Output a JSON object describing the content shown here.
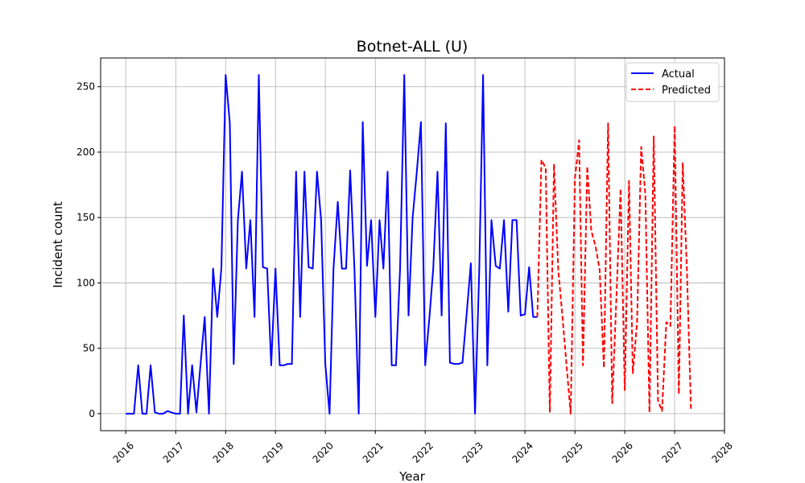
{
  "chart_data": {
    "type": "line",
    "title": "Botnet-ALL (U)",
    "xlabel": "Year",
    "ylabel": "Incident count",
    "xlim": [
      "2015-07-01",
      "2028-01-01"
    ],
    "ylim": [
      -13,
      272
    ],
    "x_ticks": [
      "2016",
      "2017",
      "2018",
      "2019",
      "2020",
      "2021",
      "2022",
      "2023",
      "2024",
      "2025",
      "2026",
      "2027",
      "2028"
    ],
    "y_ticks": [
      0,
      50,
      100,
      150,
      200,
      250
    ],
    "grid": true,
    "legend_position": "top-right",
    "colors": {
      "actual": "#0000ff",
      "predicted": "#ff0000"
    },
    "series": [
      {
        "name": "Actual",
        "style": "solid",
        "points": [
          [
            "2016-01-01",
            0
          ],
          [
            "2016-02-01",
            0
          ],
          [
            "2016-03-01",
            0
          ],
          [
            "2016-04-01",
            37
          ],
          [
            "2016-05-01",
            0
          ],
          [
            "2016-06-01",
            0
          ],
          [
            "2016-07-01",
            37
          ],
          [
            "2016-08-01",
            1
          ],
          [
            "2016-09-01",
            0
          ],
          [
            "2016-10-01",
            0
          ],
          [
            "2016-11-01",
            2
          ],
          [
            "2016-12-01",
            1
          ],
          [
            "2017-01-01",
            0
          ],
          [
            "2017-02-01",
            0
          ],
          [
            "2017-03-01",
            75
          ],
          [
            "2017-04-01",
            0
          ],
          [
            "2017-05-01",
            37
          ],
          [
            "2017-06-01",
            1
          ],
          [
            "2017-07-01",
            37
          ],
          [
            "2017-08-01",
            74
          ],
          [
            "2017-09-01",
            0
          ],
          [
            "2017-10-01",
            111
          ],
          [
            "2017-11-01",
            74
          ],
          [
            "2017-12-01",
            111
          ],
          [
            "2018-01-01",
            259
          ],
          [
            "2018-02-01",
            222
          ],
          [
            "2018-03-01",
            38
          ],
          [
            "2018-04-01",
            148
          ],
          [
            "2018-05-01",
            185
          ],
          [
            "2018-06-01",
            111
          ],
          [
            "2018-07-01",
            148
          ],
          [
            "2018-08-01",
            74
          ],
          [
            "2018-09-01",
            259
          ],
          [
            "2018-10-01",
            112
          ],
          [
            "2018-11-01",
            111
          ],
          [
            "2018-12-01",
            37
          ],
          [
            "2019-01-01",
            111
          ],
          [
            "2019-02-01",
            37
          ],
          [
            "2019-03-01",
            37
          ],
          [
            "2019-04-01",
            38
          ],
          [
            "2019-05-01",
            38
          ],
          [
            "2019-06-01",
            185
          ],
          [
            "2019-07-01",
            74
          ],
          [
            "2019-08-01",
            185
          ],
          [
            "2019-09-01",
            112
          ],
          [
            "2019-10-01",
            111
          ],
          [
            "2019-11-01",
            185
          ],
          [
            "2019-12-01",
            148
          ],
          [
            "2020-01-01",
            38
          ],
          [
            "2020-02-01",
            0
          ],
          [
            "2020-03-01",
            111
          ],
          [
            "2020-04-01",
            162
          ],
          [
            "2020-05-01",
            111
          ],
          [
            "2020-06-01",
            111
          ],
          [
            "2020-07-01",
            186
          ],
          [
            "2020-08-01",
            111
          ],
          [
            "2020-09-01",
            0
          ],
          [
            "2020-10-01",
            223
          ],
          [
            "2020-11-01",
            113
          ],
          [
            "2020-12-01",
            148
          ],
          [
            "2021-01-01",
            74
          ],
          [
            "2021-02-01",
            148
          ],
          [
            "2021-03-01",
            111
          ],
          [
            "2021-04-01",
            185
          ],
          [
            "2021-05-01",
            37
          ],
          [
            "2021-06-01",
            37
          ],
          [
            "2021-07-01",
            111
          ],
          [
            "2021-08-01",
            259
          ],
          [
            "2021-09-01",
            75
          ],
          [
            "2021-10-01",
            150
          ],
          [
            "2021-11-01",
            185
          ],
          [
            "2021-12-01",
            223
          ],
          [
            "2022-01-01",
            37
          ],
          [
            "2022-02-01",
            74
          ],
          [
            "2022-03-01",
            111
          ],
          [
            "2022-04-01",
            185
          ],
          [
            "2022-05-01",
            75
          ],
          [
            "2022-06-01",
            222
          ],
          [
            "2022-07-01",
            39
          ],
          [
            "2022-08-01",
            38
          ],
          [
            "2022-09-01",
            38
          ],
          [
            "2022-10-01",
            39
          ],
          [
            "2022-11-01",
            77
          ],
          [
            "2022-12-01",
            115
          ],
          [
            "2023-01-01",
            0
          ],
          [
            "2023-02-01",
            111
          ],
          [
            "2023-03-01",
            259
          ],
          [
            "2023-04-01",
            37
          ],
          [
            "2023-05-01",
            148
          ],
          [
            "2023-06-01",
            113
          ],
          [
            "2023-07-01",
            111
          ],
          [
            "2023-08-01",
            148
          ],
          [
            "2023-09-01",
            78
          ],
          [
            "2023-10-01",
            148
          ],
          [
            "2023-11-01",
            148
          ],
          [
            "2023-12-01",
            75
          ],
          [
            "2024-01-01",
            76
          ],
          [
            "2024-02-01",
            112
          ],
          [
            "2024-03-01",
            74
          ],
          [
            "2024-04-01",
            74
          ]
        ]
      },
      {
        "name": "Predicted",
        "style": "dashed",
        "points": [
          [
            "2024-04-01",
            74
          ],
          [
            "2024-05-01",
            194
          ],
          [
            "2024-06-01",
            188
          ],
          [
            "2024-07-01",
            1
          ],
          [
            "2024-08-01",
            191
          ],
          [
            "2024-09-01",
            110
          ],
          [
            "2024-10-01",
            75
          ],
          [
            "2024-11-01",
            37
          ],
          [
            "2024-12-01",
            0
          ],
          [
            "2025-01-01",
            180
          ],
          [
            "2025-02-01",
            209
          ],
          [
            "2025-03-01",
            37
          ],
          [
            "2025-04-01",
            189
          ],
          [
            "2025-05-01",
            140
          ],
          [
            "2025-06-01",
            128
          ],
          [
            "2025-07-01",
            110
          ],
          [
            "2025-08-01",
            35
          ],
          [
            "2025-09-01",
            222
          ],
          [
            "2025-10-01",
            8
          ],
          [
            "2025-11-01",
            90
          ],
          [
            "2025-12-01",
            172
          ],
          [
            "2026-01-01",
            18
          ],
          [
            "2026-02-01",
            178
          ],
          [
            "2026-03-01",
            31
          ],
          [
            "2026-04-01",
            70
          ],
          [
            "2026-05-01",
            204
          ],
          [
            "2026-06-01",
            168
          ],
          [
            "2026-07-01",
            1
          ],
          [
            "2026-08-01",
            212
          ],
          [
            "2026-09-01",
            10
          ],
          [
            "2026-10-01",
            2
          ],
          [
            "2026-11-01",
            70
          ],
          [
            "2026-12-01",
            67
          ],
          [
            "2027-01-01",
            220
          ],
          [
            "2027-02-01",
            15
          ],
          [
            "2027-03-01",
            192
          ],
          [
            "2027-04-01",
            110
          ],
          [
            "2027-05-01",
            2
          ]
        ]
      }
    ]
  }
}
